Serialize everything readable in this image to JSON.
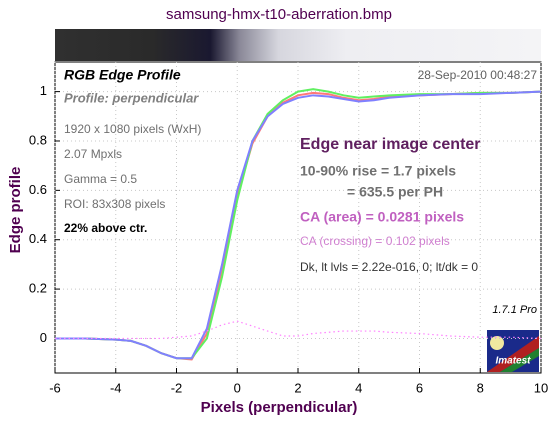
{
  "chart_data": {
    "type": "line",
    "title": "samsung-hmx-t10-aberration.bmp",
    "x_label": "Pixels (perpendicular)",
    "y_label": "Edge profile",
    "annotations": [
      "RGB Edge Profile",
      "Profile: perpendicular",
      "28-Sep-2010 00:48:27",
      "1920 x 1080 pixels (WxH)",
      "2.07 Mpxls",
      "Gamma = 0.5",
      "ROI: 83x308 pixels",
      "22% above ctr.",
      "Edge near image center",
      "10-90% rise = 1.7 pixels",
      "= 635.5 per PH",
      "CA (area) = 0.0281 pixels",
      "CA (crossing) = 0.102 pixels",
      "Dk, lt lvls = 2.22e-016, 0;  lt/dk = 0",
      "1.7.1  Pro",
      "Imatest"
    ],
    "x": [
      -6,
      -5,
      -4,
      -3.5,
      -3,
      -2.5,
      -2,
      -1.5,
      -1,
      -0.5,
      0,
      0.5,
      1,
      1.5,
      2,
      2.5,
      3,
      3.5,
      4,
      4.5,
      5,
      6,
      7,
      8,
      9,
      10
    ],
    "series": [
      {
        "color": "#ff7878",
        "values": [
          0,
          0,
          -0.005,
          -0.01,
          -0.03,
          -0.06,
          -0.08,
          -0.085,
          0.02,
          0.28,
          0.58,
          0.79,
          0.9,
          0.955,
          0.985,
          0.995,
          0.99,
          0.975,
          0.965,
          0.97,
          0.98,
          0.985,
          0.99,
          0.995,
          0.995,
          1.0
        ],
        "style": "solid"
      },
      {
        "color": "#60f060",
        "values": [
          0,
          0,
          -0.005,
          -0.01,
          -0.03,
          -0.06,
          -0.08,
          -0.08,
          0.0,
          0.25,
          0.56,
          0.8,
          0.91,
          0.965,
          1.0,
          1.01,
          1.0,
          0.985,
          0.975,
          0.98,
          0.985,
          0.99,
          0.99,
          0.995,
          0.995,
          1.0
        ],
        "style": "solid"
      },
      {
        "color": "#8080ff",
        "values": [
          0,
          0,
          -0.005,
          -0.01,
          -0.03,
          -0.06,
          -0.08,
          -0.08,
          0.04,
          0.3,
          0.6,
          0.8,
          0.9,
          0.95,
          0.975,
          0.985,
          0.98,
          0.97,
          0.96,
          0.965,
          0.975,
          0.985,
          0.99,
          0.99,
          0.995,
          1.0
        ],
        "style": "solid"
      },
      {
        "color": "#ff80ff",
        "values": [
          0,
          0,
          0,
          0,
          0,
          0,
          0.005,
          0.01,
          0.03,
          0.055,
          0.07,
          0.05,
          0.03,
          0.01,
          0.01,
          0.02,
          0.025,
          0.03,
          0.03,
          0.03,
          0.025,
          0.02,
          0.01,
          0.005,
          0.005,
          0
        ],
        "style": "dotted"
      }
    ],
    "xlim": [
      -6,
      10
    ],
    "xticks": [
      -6,
      -4,
      -2,
      0,
      2,
      4,
      6,
      8,
      10
    ],
    "ylim": [
      -0.14,
      1.12
    ],
    "yticks": [
      0,
      0.2,
      0.4,
      0.6,
      0.8,
      1
    ],
    "grid": true
  }
}
